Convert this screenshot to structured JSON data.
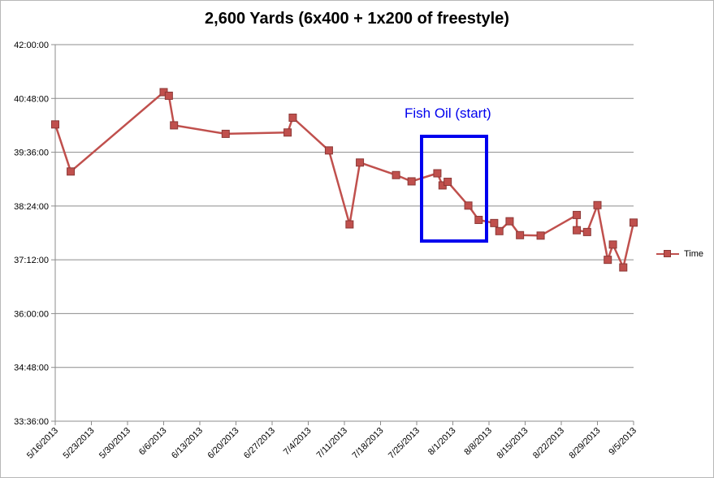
{
  "chart_data": {
    "type": "line",
    "title": "2,600 Yards (6x400 + 1x200 of freestyle)",
    "xlabel": "",
    "ylabel": "",
    "x_ticks": [
      "5/16/2013",
      "5/23/2013",
      "5/30/2013",
      "6/6/2013",
      "6/13/2013",
      "6/20/2013",
      "6/27/2013",
      "7/4/2013",
      "7/11/2013",
      "7/18/2013",
      "7/25/2013",
      "8/1/2013",
      "8/8/2013",
      "8/15/2013",
      "8/22/2013",
      "8/29/2013",
      "9/5/2013"
    ],
    "y_ticks": [
      "33:36:00",
      "34:48:00",
      "36:00:00",
      "37:12:00",
      "38:24:00",
      "39:36:00",
      "40:48:00",
      "42:00:00"
    ],
    "y_unit": "minutes",
    "ylim": [
      2016,
      2520
    ],
    "grid": true,
    "legend_position": "right",
    "annotation": {
      "text": "Fish Oil (start)",
      "color": "#0000ee"
    },
    "series": [
      {
        "name": "Time",
        "color": "#c0504d",
        "x": [
          "5/16/2013",
          "5/19/2013",
          "6/6/2013",
          "6/7/2013",
          "6/8/2013",
          "6/18/2013",
          "6/30/2013",
          "7/1/2013",
          "7/8/2013",
          "7/12/2013",
          "7/14/2013",
          "7/21/2013",
          "7/24/2013",
          "7/29/2013",
          "7/30/2013",
          "7/31/2013",
          "8/4/2013",
          "8/6/2013",
          "8/9/2013",
          "8/10/2013",
          "8/12/2013",
          "8/14/2013",
          "8/18/2013",
          "8/25/2013",
          "8/25/2013",
          "8/27/2013",
          "8/29/2013",
          "8/31/2013",
          "9/1/2013",
          "9/3/2013",
          "9/5/2013"
        ],
        "y": [
          2413.2,
          2350.2,
          2456.4,
          2451.6,
          2412.0,
          2400.6,
          2402.4,
          2422.2,
          2378.4,
          2279.4,
          2362.2,
          2345.4,
          2337.0,
          2347.8,
          2331.6,
          2336.4,
          2304.6,
          2285.4,
          2281.2,
          2270.4,
          2283.6,
          2265.0,
          2264.4,
          2292.0,
          2271.6,
          2269.2,
          2305.2,
          2232.0,
          2252.4,
          2221.8,
          2281.8
        ]
      }
    ]
  }
}
